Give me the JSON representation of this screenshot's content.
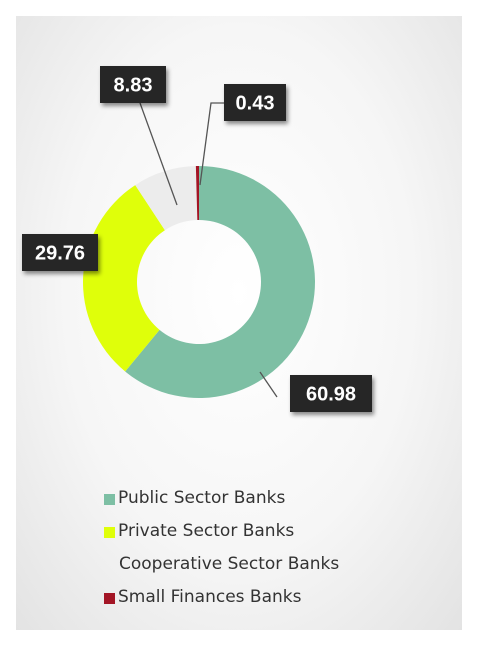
{
  "chart_data": {
    "type": "pie",
    "donut": true,
    "title": "",
    "categories": [
      "Public Sector Banks",
      "Private Sector Banks",
      "Cooperative Sector Banks",
      "Small Finances Banks"
    ],
    "values": [
      60.98,
      29.76,
      8.83,
      0.43
    ],
    "data_labels": [
      "60.98",
      "29.76",
      "8.83",
      "0.43"
    ],
    "colors": [
      "#7dbfa4",
      "#dfff0a",
      "#ececec",
      "#a31525"
    ],
    "legend_position": "bottom"
  }
}
